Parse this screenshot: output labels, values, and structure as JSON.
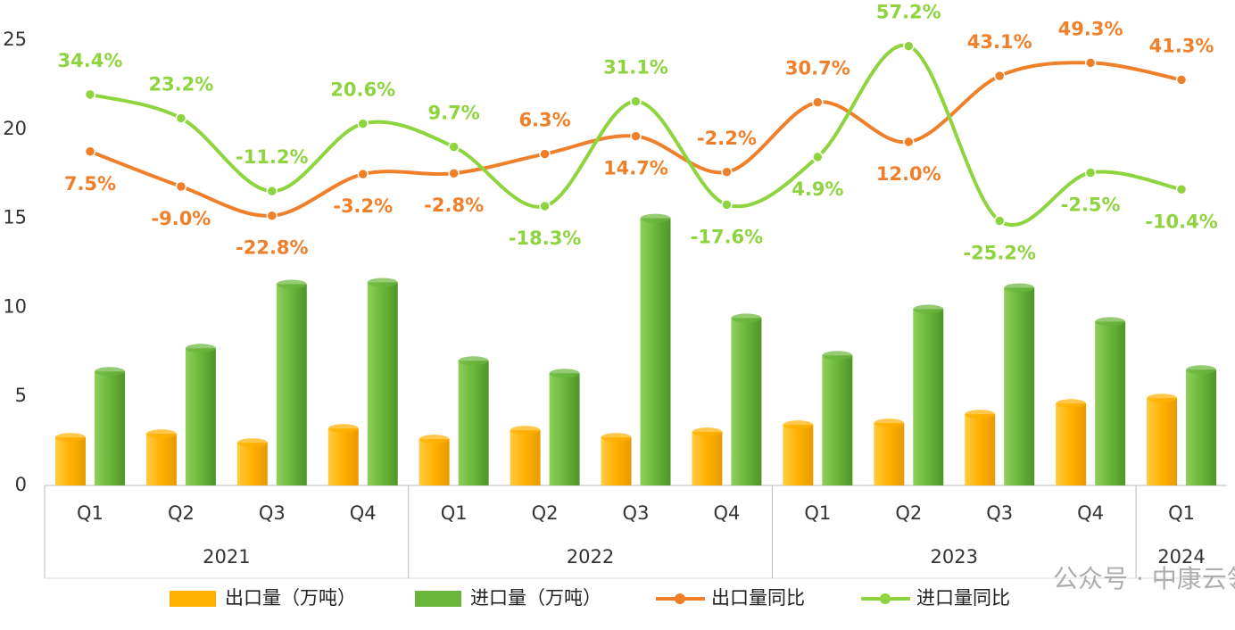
{
  "chart_data": {
    "type": "combo",
    "categories": [
      "Q1",
      "Q2",
      "Q3",
      "Q4",
      "Q1",
      "Q2",
      "Q3",
      "Q4",
      "Q1",
      "Q2",
      "Q3",
      "Q4",
      "Q1"
    ],
    "groups": [
      {
        "label": "2021",
        "span": 4
      },
      {
        "label": "2022",
        "span": 4
      },
      {
        "label": "2023",
        "span": 4
      },
      {
        "label": "2024",
        "span": 1
      }
    ],
    "ylim": [
      0,
      25
    ],
    "yticks": [
      0,
      5,
      10,
      15,
      20,
      25
    ],
    "y2lim": [
      -150,
      60
    ],
    "series": [
      {
        "name": "出口量（万吨）",
        "kind": "bar",
        "color": "#ffb000",
        "values": [
          2.7,
          2.9,
          2.4,
          3.2,
          2.6,
          3.1,
          2.7,
          3.0,
          3.4,
          3.5,
          4.0,
          4.6,
          4.9
        ]
      },
      {
        "name": "进口量（万吨）",
        "kind": "bar",
        "color": "#6ab53b",
        "values": [
          6.4,
          7.7,
          11.3,
          11.4,
          7.0,
          6.3,
          15.0,
          9.4,
          7.3,
          9.9,
          11.1,
          9.2,
          6.5
        ]
      },
      {
        "name": "出口量同比",
        "kind": "line",
        "axis": "y2",
        "color": "#f07f2a",
        "values": [
          7.5,
          -9.0,
          -22.8,
          -3.2,
          -2.8,
          6.3,
          14.7,
          -2.2,
          30.7,
          12.0,
          43.1,
          49.3,
          41.3
        ],
        "value_labels": [
          "7.5%",
          "-9.0%",
          "-22.8%",
          "-3.2%",
          "-2.8%",
          "6.3%",
          "14.7%",
          "-2.2%",
          "30.7%",
          "12.0%",
          "43.1%",
          "49.3%",
          "41.3%"
        ]
      },
      {
        "name": "进口量同比",
        "kind": "line",
        "axis": "y2",
        "color": "#8ed43e",
        "values": [
          34.4,
          23.2,
          -11.2,
          20.6,
          9.7,
          -18.3,
          31.1,
          -17.6,
          4.9,
          57.2,
          -25.2,
          -2.5,
          -10.4
        ],
        "value_labels": [
          "34.4%",
          "23.2%",
          "-11.2%",
          "20.6%",
          "9.7%",
          "-18.3%",
          "31.1%",
          "-17.6%",
          "4.9%",
          "57.2%",
          "-25.2%",
          "-2.5%",
          "-10.4%"
        ]
      }
    ],
    "watermark": "公众号 · 中康云瓴"
  }
}
